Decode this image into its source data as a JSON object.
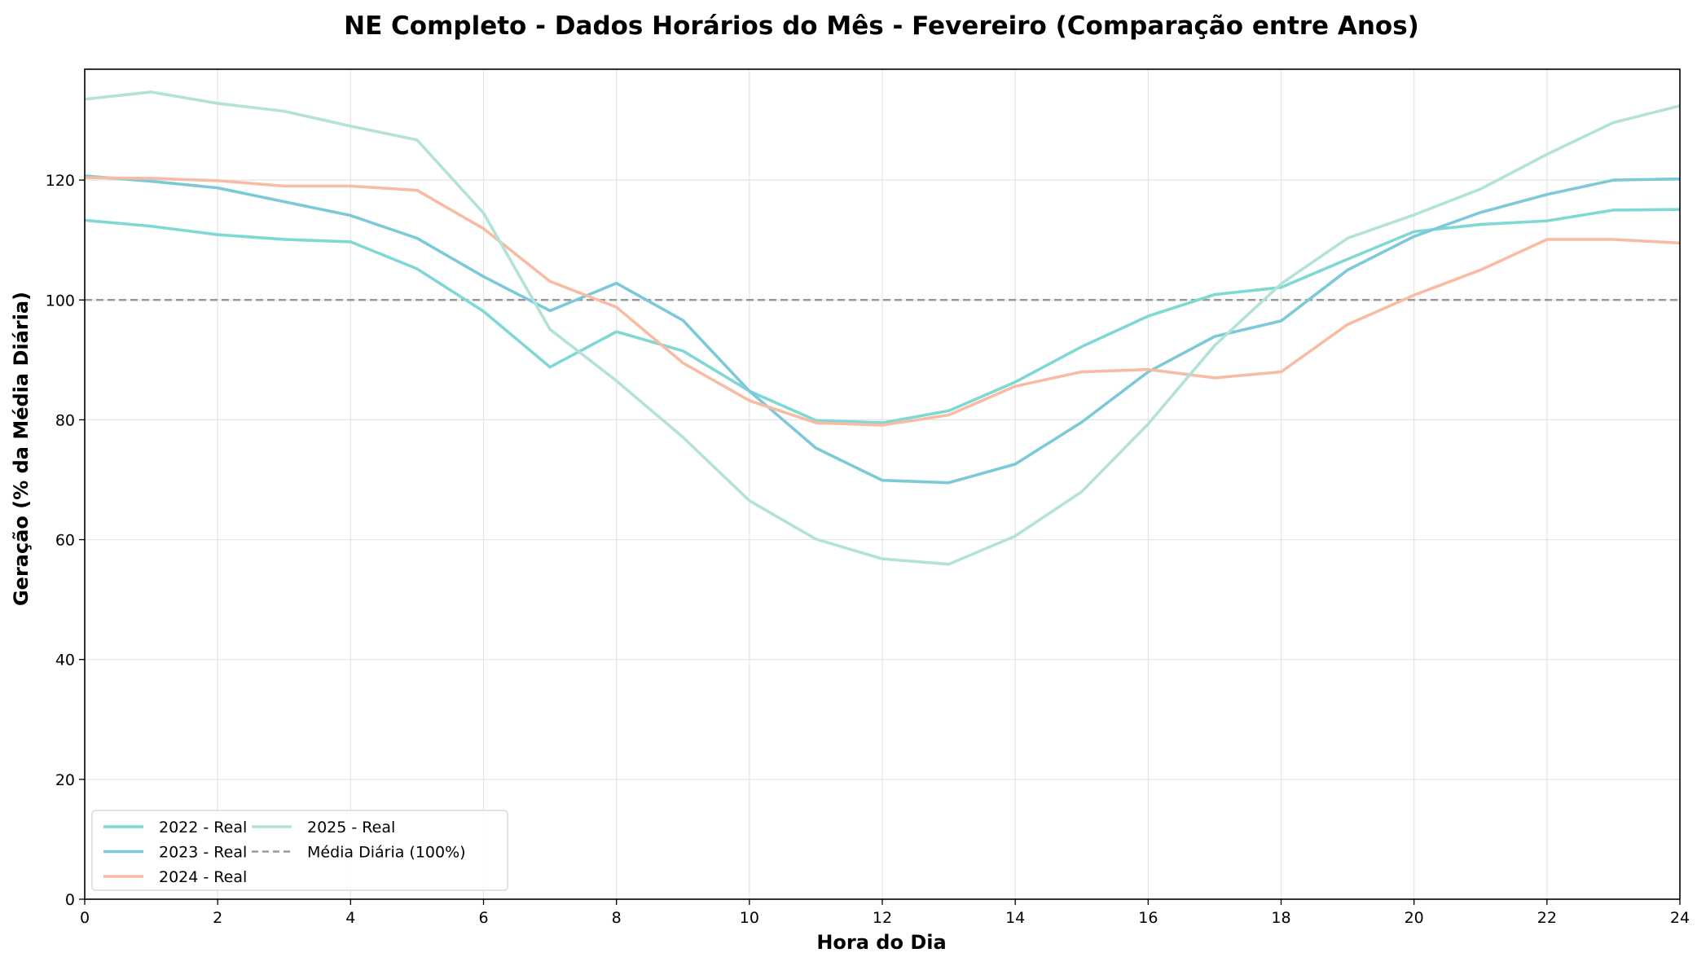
{
  "chart_data": {
    "type": "line",
    "title": "NE Completo - Dados Horários do Mês - Fevereiro (Comparação entre Anos)",
    "xlabel": "Hora do Dia",
    "ylabel": "Geração (% da Média Diária)",
    "xlim": [
      0,
      24
    ],
    "ylim": [
      0,
      138.5
    ],
    "xticks": [
      0,
      2,
      4,
      6,
      8,
      10,
      12,
      14,
      16,
      18,
      20,
      22,
      24
    ],
    "yticks": [
      0,
      20,
      40,
      60,
      80,
      100,
      120
    ],
    "grid": true,
    "legend_position": "lower-left",
    "x": [
      0,
      1,
      2,
      3,
      4,
      5,
      6,
      7,
      8,
      9,
      10,
      11,
      12,
      13,
      14,
      15,
      16,
      17,
      18,
      19,
      20,
      21,
      22,
      23,
      24
    ],
    "series": [
      {
        "name": "2022 - Real",
        "color": "#7fd8d4",
        "values": [
          113.3,
          112.3,
          110.9,
          110.1,
          109.7,
          105.2,
          98.1,
          88.8,
          94.7,
          91.5,
          84.8,
          79.9,
          79.5,
          81.5,
          86.3,
          92.2,
          97.3,
          100.9,
          102.1,
          106.8,
          111.4,
          112.6,
          113.2,
          115.0,
          115.1
        ]
      },
      {
        "name": "2023 - Real",
        "color": "#7ccad9",
        "values": [
          120.7,
          119.8,
          118.7,
          116.4,
          114.1,
          110.3,
          103.9,
          98.2,
          102.8,
          96.6,
          84.8,
          75.3,
          69.9,
          69.5,
          72.6,
          79.6,
          88.0,
          93.9,
          96.5,
          105.0,
          110.6,
          114.6,
          117.6,
          120.0,
          120.2
        ]
      },
      {
        "name": "2024 - Real",
        "color": "#f8bca4",
        "values": [
          120.4,
          120.3,
          119.9,
          119.0,
          119.0,
          118.3,
          111.9,
          103.1,
          98.8,
          89.5,
          83.2,
          79.5,
          79.1,
          80.8,
          85.6,
          88.0,
          88.4,
          87.0,
          88.0,
          95.9,
          100.8,
          105.0,
          110.1,
          110.1,
          109.5
        ]
      },
      {
        "name": "2025 - Real",
        "color": "#b3e2d6",
        "values": [
          133.5,
          134.7,
          132.8,
          131.5,
          129.0,
          126.7,
          114.5,
          95.1,
          86.5,
          77.1,
          66.5,
          60.1,
          56.8,
          55.9,
          60.6,
          68.0,
          79.3,
          92.4,
          102.7,
          110.3,
          114.2,
          118.5,
          124.3,
          129.6,
          132.4
        ]
      }
    ],
    "reference_line": {
      "name": "Média Diária (100%)",
      "value": 100,
      "color": "#999999"
    }
  }
}
